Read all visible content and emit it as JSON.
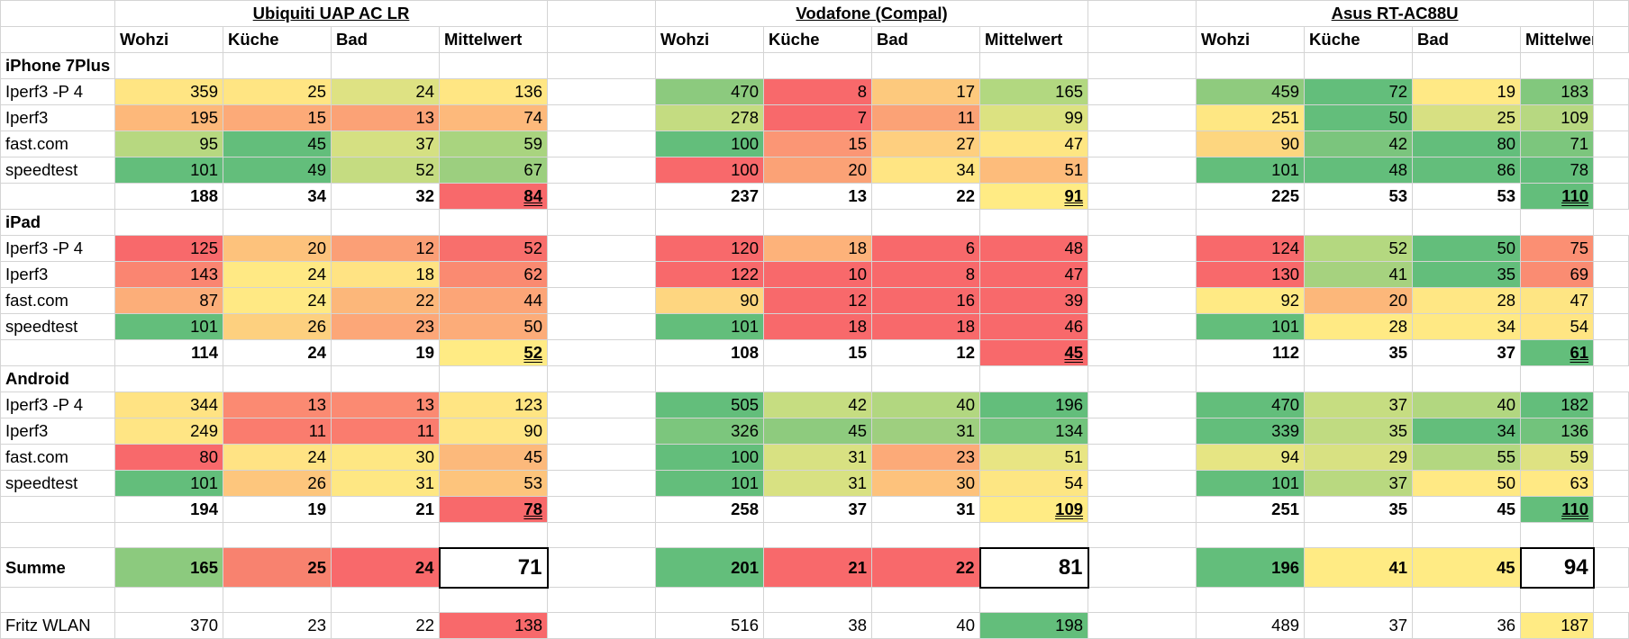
{
  "routers": [
    "Ubiquiti UAP AC LR",
    "Vodafone (Compal)",
    "Asus RT-AC88U"
  ],
  "columns": [
    "Wohzi",
    "Küche",
    "Bad",
    "Mittelwert"
  ],
  "sections": [
    {
      "name": "iPhone 7Plus",
      "rows": [
        {
          "label": "Iperf3 -P 4",
          "values": [
            [
              359,
              25,
              24,
              136
            ],
            [
              470,
              8,
              17,
              165
            ],
            [
              459,
              72,
              19,
              183
            ]
          ]
        },
        {
          "label": "Iperf3",
          "values": [
            [
              195,
              15,
              13,
              74
            ],
            [
              278,
              7,
              11,
              99
            ],
            [
              251,
              50,
              25,
              109
            ]
          ]
        },
        {
          "label": "fast.com",
          "values": [
            [
              95,
              45,
              37,
              59
            ],
            [
              100,
              15,
              27,
              47
            ],
            [
              90,
              42,
              80,
              71
            ]
          ]
        },
        {
          "label": "speedtest",
          "values": [
            [
              101,
              49,
              52,
              67
            ],
            [
              100,
              20,
              34,
              51
            ],
            [
              101,
              48,
              86,
              78
            ]
          ]
        }
      ],
      "avg": [
        [
          188,
          34,
          32,
          84
        ],
        [
          237,
          13,
          22,
          91
        ],
        [
          225,
          53,
          53,
          110
        ]
      ]
    },
    {
      "name": "iPad",
      "rows": [
        {
          "label": "Iperf3 -P 4",
          "values": [
            [
              125,
              20,
              12,
              52
            ],
            [
              120,
              18,
              6,
              48
            ],
            [
              124,
              52,
              50,
              75
            ]
          ]
        },
        {
          "label": "Iperf3",
          "values": [
            [
              143,
              24,
              18,
              62
            ],
            [
              122,
              10,
              8,
              47
            ],
            [
              130,
              41,
              35,
              69
            ]
          ]
        },
        {
          "label": "fast.com",
          "values": [
            [
              87,
              24,
              22,
              44
            ],
            [
              90,
              12,
              16,
              39
            ],
            [
              92,
              20,
              28,
              47
            ]
          ]
        },
        {
          "label": "speedtest",
          "values": [
            [
              101,
              26,
              23,
              50
            ],
            [
              101,
              18,
              18,
              46
            ],
            [
              101,
              28,
              34,
              54
            ]
          ]
        }
      ],
      "avg": [
        [
          114,
          24,
          19,
          52
        ],
        [
          108,
          15,
          12,
          45
        ],
        [
          112,
          35,
          37,
          61
        ]
      ]
    },
    {
      "name": "Android",
      "rows": [
        {
          "label": "Iperf3 -P 4",
          "values": [
            [
              344,
              13,
              13,
              123
            ],
            [
              505,
              42,
              40,
              196
            ],
            [
              470,
              37,
              40,
              182
            ]
          ]
        },
        {
          "label": "Iperf3",
          "values": [
            [
              249,
              11,
              11,
              90
            ],
            [
              326,
              45,
              31,
              134
            ],
            [
              339,
              35,
              34,
              136
            ]
          ]
        },
        {
          "label": "fast.com",
          "values": [
            [
              80,
              24,
              30,
              45
            ],
            [
              100,
              31,
              23,
              51
            ],
            [
              94,
              29,
              55,
              59
            ]
          ]
        },
        {
          "label": "speedtest",
          "values": [
            [
              101,
              26,
              31,
              53
            ],
            [
              101,
              31,
              30,
              54
            ],
            [
              101,
              37,
              50,
              63
            ]
          ]
        }
      ],
      "avg": [
        [
          194,
          19,
          21,
          78
        ],
        [
          258,
          37,
          31,
          109
        ],
        [
          251,
          35,
          45,
          110
        ]
      ]
    }
  ],
  "summe": {
    "label": "Summe",
    "values": [
      [
        165,
        25,
        24,
        71
      ],
      [
        201,
        21,
        22,
        81
      ],
      [
        196,
        41,
        45,
        94
      ]
    ]
  },
  "fritz": {
    "label": "Fritz WLAN",
    "values": [
      [
        370,
        23,
        22,
        138
      ],
      [
        516,
        38,
        40,
        198
      ],
      [
        489,
        37,
        36,
        187
      ]
    ]
  },
  "colors": {
    "green": "#63be7b",
    "light_green": "#a9d27f",
    "yellow": "#ffeb84",
    "orange": "#fcb77a",
    "red": "#f8696b",
    "white": "#ffffff"
  },
  "cell_colors": {
    "s0": [
      [
        [
          "#ffe583",
          "#ffe583",
          "#dee283",
          "#ffe683"
        ],
        [
          "#8cca7e",
          "#f8696b",
          "#fdc97d",
          "#b2d880"
        ],
        [
          "#8fcb7e",
          "#63be7b",
          "#ffe985",
          "#82c87d"
        ]
      ],
      [
        [
          "#fdb87a",
          "#fcaa78",
          "#fba276",
          "#fdb97b"
        ],
        [
          "#c4dc81",
          "#f8696b",
          "#fba276",
          "#dce281"
        ],
        [
          "#fee783",
          "#63be7b",
          "#d7e082",
          "#b7d881"
        ]
      ],
      [
        [
          "#b7d880",
          "#63be7b",
          "#d5e082",
          "#a9d47f"
        ],
        [
          "#63be7b",
          "#fb9675",
          "#fecf7f",
          "#fee683"
        ],
        [
          "#fdd67f",
          "#7bc57d",
          "#63be7b",
          "#7cc67d"
        ]
      ],
      [
        [
          "#63be7b",
          "#63be7b",
          "#c5dc81",
          "#9ccf7f"
        ],
        [
          "#f8696b",
          "#fba276",
          "#ffe583",
          "#fdbc7b"
        ],
        [
          "#63be7b",
          "#63be7b",
          "#63be7b",
          "#63be7b"
        ]
      ]
    ],
    "avg0": [
      "#ffffff",
      "#ffffff",
      "#ffffff",
      "#f8696b",
      "#ffffff",
      "#ffffff",
      "#ffffff",
      "#ffeb84",
      "#ffffff",
      "#ffffff",
      "#ffffff",
      "#63be7b"
    ],
    "s1": [
      [
        [
          "#f8696b",
          "#fdc27c",
          "#fb9f76",
          "#f86f6c"
        ],
        [
          "#f8696b",
          "#fdb27a",
          "#f8696b",
          "#f8696b"
        ],
        [
          "#f8696b",
          "#b4d880",
          "#63be7b",
          "#fb8f73"
        ]
      ],
      [
        [
          "#fa8571",
          "#ffe984",
          "#ffe383",
          "#fa8a71"
        ],
        [
          "#f8696b",
          "#f8696b",
          "#f8696b",
          "#f8696b"
        ],
        [
          "#f8696b",
          "#a6d27f",
          "#63be7b",
          "#fa8c72"
        ]
      ],
      [
        [
          "#fcae79",
          "#ffe984",
          "#fcb77a",
          "#fca577"
        ],
        [
          "#fed680",
          "#f8696b",
          "#f8696b",
          "#f8696b"
        ],
        [
          "#ffea84",
          "#fcb77a",
          "#ffe784",
          "#fee583"
        ]
      ],
      [
        [
          "#63be7b",
          "#fdd07f",
          "#fca778",
          "#fcac79"
        ],
        [
          "#63be7b",
          "#f8696b",
          "#f8696b",
          "#f8696b"
        ],
        [
          "#63be7b",
          "#ffea84",
          "#ffe984",
          "#ffe583"
        ]
      ]
    ],
    "avg1": [
      "#ffffff",
      "#ffffff",
      "#ffffff",
      "#ffeb84",
      "#ffffff",
      "#ffffff",
      "#ffffff",
      "#f8696b",
      "#ffffff",
      "#ffffff",
      "#ffffff",
      "#63be7b"
    ],
    "s2": [
      [
        [
          "#ffe383",
          "#fb8a72",
          "#fb8a72",
          "#ffe583"
        ],
        [
          "#63be7b",
          "#c6dd81",
          "#b2d780",
          "#63be7b"
        ],
        [
          "#63be7b",
          "#c6dd81",
          "#b2d780",
          "#63be7b"
        ]
      ],
      [
        [
          "#ffe584",
          "#fa7c6e",
          "#fa7c6e",
          "#ffe584"
        ],
        [
          "#7cc67d",
          "#8ecb7e",
          "#9ecf7f",
          "#72c37c"
        ],
        [
          "#63be7b",
          "#c0db81",
          "#63be7b",
          "#72c37c"
        ]
      ],
      [
        [
          "#f8696b",
          "#ffe384",
          "#fee783",
          "#fcb97b"
        ],
        [
          "#63be7b",
          "#d8e182",
          "#fcaa78",
          "#e8e583"
        ],
        [
          "#e6e583",
          "#d8e182",
          "#b3d780",
          "#dee282"
        ]
      ],
      [
        [
          "#63be7b",
          "#fdc67d",
          "#fee783",
          "#fdc47c"
        ],
        [
          "#63be7b",
          "#d8e182",
          "#fdc27c",
          "#fde683"
        ],
        [
          "#63be7b",
          "#b9d980",
          "#ffe984",
          "#ffe984"
        ]
      ]
    ],
    "avg2": [
      "#ffffff",
      "#ffffff",
      "#ffffff",
      "#f8696b",
      "#ffffff",
      "#ffffff",
      "#ffffff",
      "#ffeb84",
      "#ffffff",
      "#ffffff",
      "#ffffff",
      "#63be7b"
    ],
    "summe": [
      [
        "#8cca7e",
        "#f8826f",
        "#f8696b"
      ],
      [
        "#63be7b",
        "#f8696b",
        "#f8696b"
      ],
      [
        "#63be7b",
        "#ffeb84",
        "#ffeb84"
      ]
    ],
    "fritz_avg": [
      "#f8696b",
      "#63be7b",
      "#ffeb84"
    ]
  }
}
